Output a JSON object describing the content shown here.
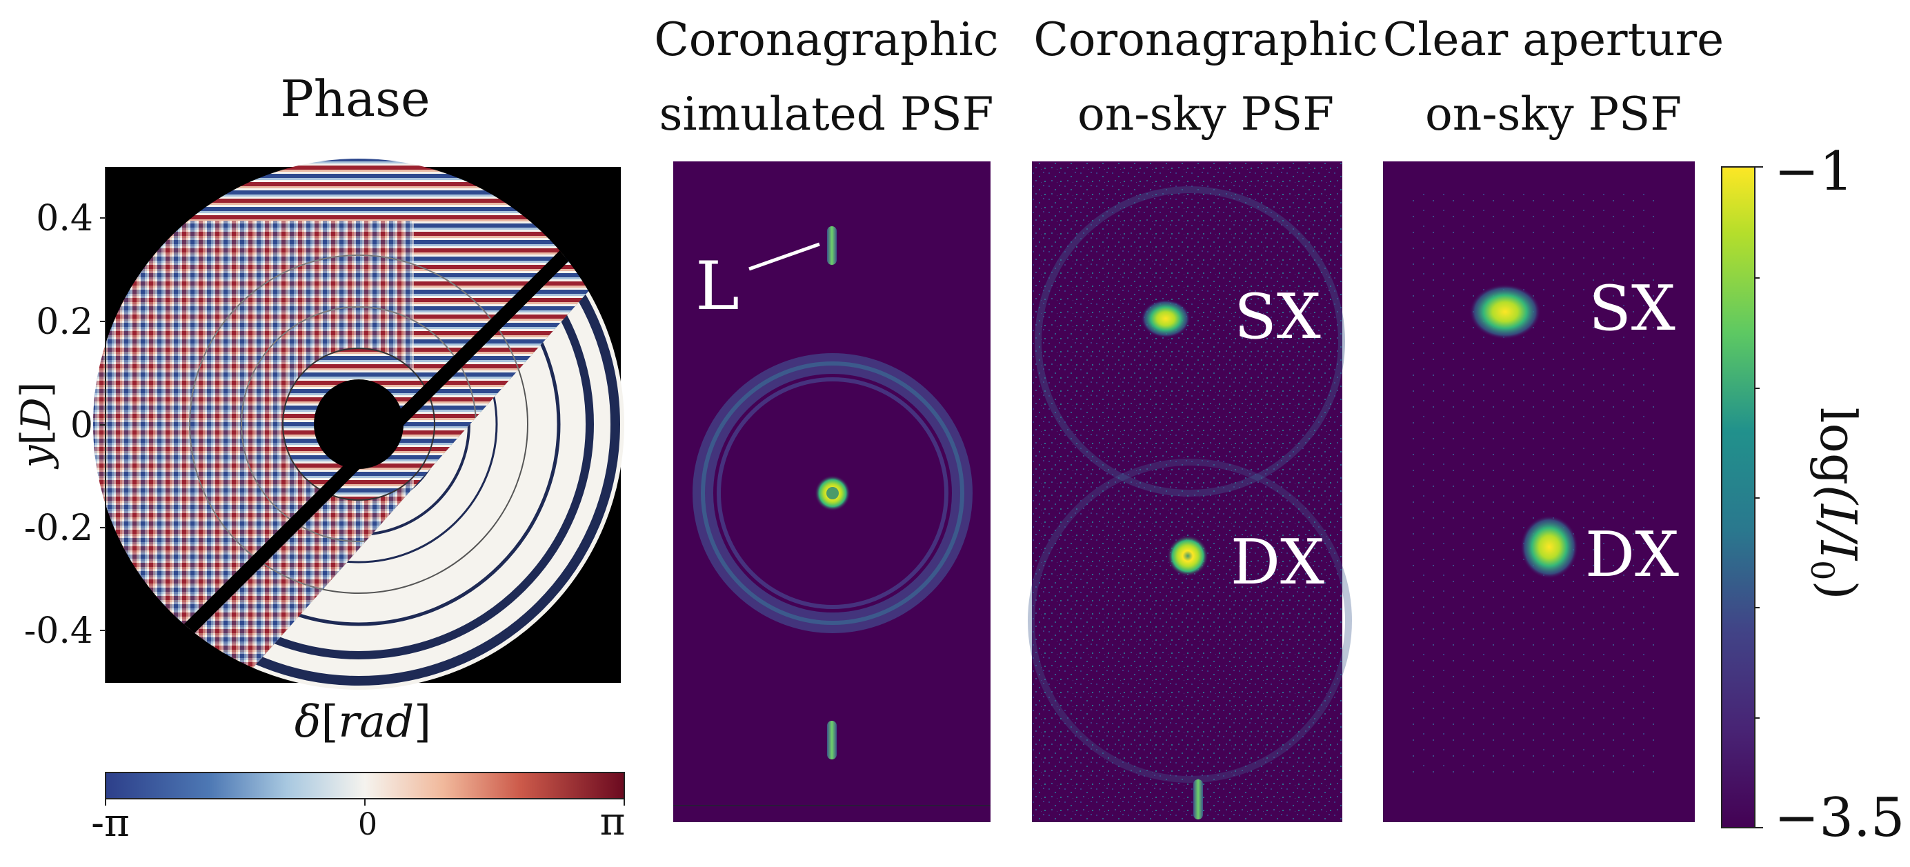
{
  "phase_panel": {
    "title": "Phase",
    "ylabel_var": "y",
    "ylabel_unit": "D",
    "xlabel_var": "δ",
    "xlabel_unit": "rad",
    "yticks": [
      "0.4",
      "0.2",
      "0",
      "-0.2",
      "-0.4"
    ],
    "cmap": "RdBu_r",
    "colorbar_ticks": [
      "-π",
      "0",
      "π"
    ],
    "colors": {
      "negative": "#2d3f8a",
      "neutral": "#f5f3ee",
      "positive": "#8b1020"
    }
  },
  "psf_panels": [
    {
      "title_line1": "Coronagraphic",
      "title_line2": "simulated PSF",
      "labels": [
        "L"
      ]
    },
    {
      "title_line1": "Coronagraphic",
      "title_line2": "on-sky PSF",
      "labels": [
        "SX",
        "DX"
      ]
    },
    {
      "title_line1": "Clear aperture",
      "title_line2": "on-sky PSF",
      "labels": [
        "SX",
        "DX"
      ]
    }
  ],
  "intensity_colorbar": {
    "label_func": "log",
    "label_text": "(I/I",
    "label_sub": "0",
    "label_close": ")",
    "max_label": "−1",
    "min_label": "−3.5",
    "cmap": "viridis",
    "colors": {
      "low": "#440154",
      "mid": "#21918c",
      "high": "#fde725"
    }
  }
}
